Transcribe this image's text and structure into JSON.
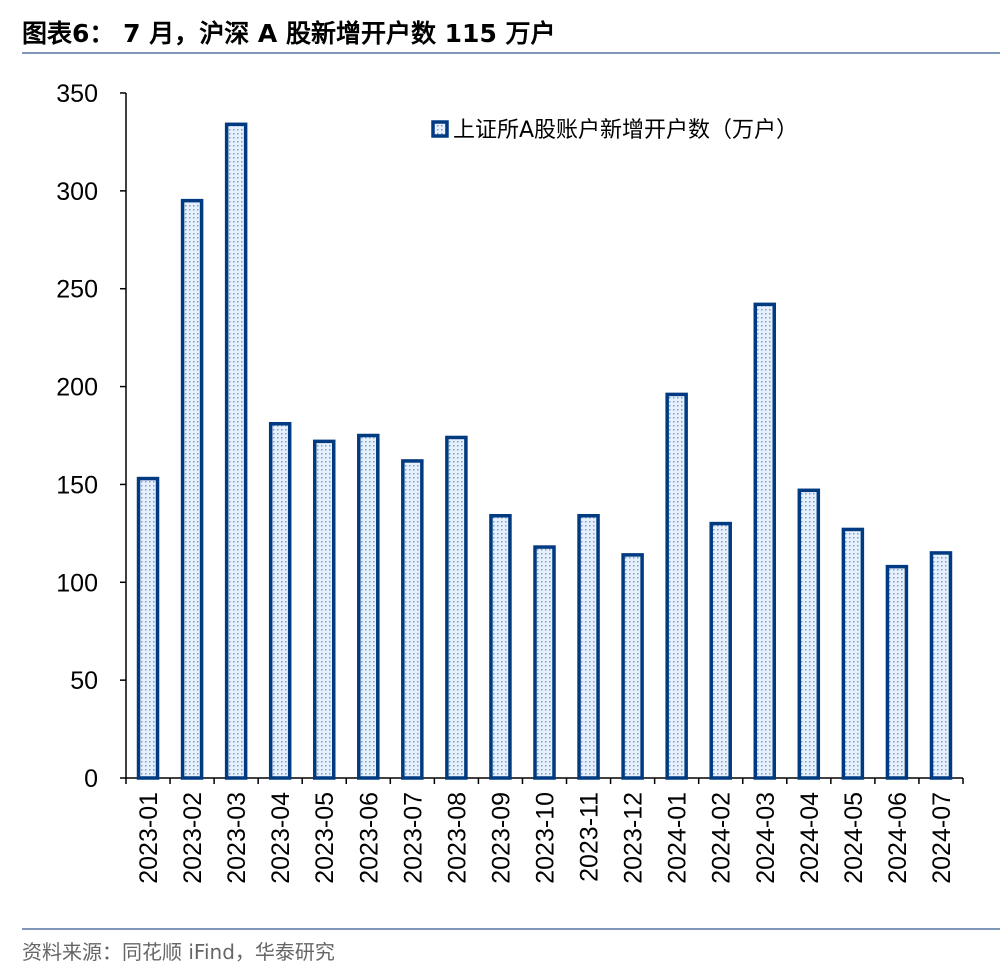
{
  "header": {
    "title": "图表6：  7 月，沪深 A 股新增开户数 115 万户"
  },
  "footer": {
    "source": "资料来源：同花顺 iFind，华泰研究"
  },
  "colors": {
    "bar_stroke": "#003a80",
    "bar_fill": "#dbe8f8",
    "bar_dot": "#6fa0d8",
    "rule": "#7f97b8"
  },
  "chart_data": {
    "type": "bar",
    "title": "",
    "xlabel": "",
    "ylabel": "",
    "ylim": [
      0,
      350
    ],
    "yticks": [
      "0",
      "50",
      "100",
      "150",
      "200",
      "250",
      "300",
      "350"
    ],
    "grid": false,
    "legend_position": "top-right",
    "categories": [
      "2023-01",
      "2023-02",
      "2023-03",
      "2023-04",
      "2023-05",
      "2023-06",
      "2023-07",
      "2023-08",
      "2023-09",
      "2023-10",
      "2023-11",
      "2023-12",
      "2024-01",
      "2024-02",
      "2024-03",
      "2024-04",
      "2024-05",
      "2024-06",
      "2024-07"
    ],
    "series": [
      {
        "name": "上证所A股账户新增开户数（万户）",
        "values": [
          153,
          295,
          334,
          181,
          172,
          175,
          162,
          174,
          134,
          118,
          134,
          114,
          196,
          130,
          242,
          147,
          127,
          108,
          115
        ]
      }
    ]
  }
}
